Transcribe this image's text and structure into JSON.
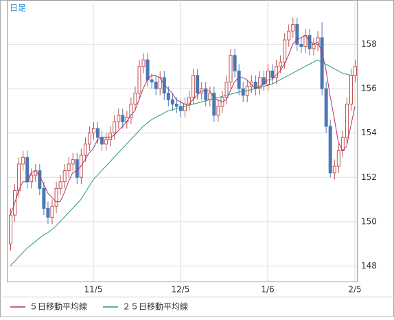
{
  "chart_data": {
    "type": "candlestick",
    "title": "日足",
    "categories": [
      null,
      null,
      null,
      null,
      null,
      null,
      null,
      null,
      null,
      null,
      null,
      null,
      null,
      null,
      null,
      null,
      null,
      null,
      null,
      null,
      "11/5",
      null,
      null,
      null,
      null,
      null,
      null,
      null,
      null,
      null,
      null,
      null,
      null,
      null,
      null,
      null,
      null,
      null,
      null,
      null,
      null,
      "12/5",
      null,
      null,
      null,
      null,
      null,
      null,
      null,
      null,
      null,
      null,
      null,
      null,
      null,
      null,
      null,
      null,
      null,
      null,
      null,
      null,
      "1/6",
      null,
      null,
      null,
      null,
      null,
      null,
      null,
      null,
      null,
      null,
      null,
      null,
      null,
      null,
      null,
      null,
      null,
      null,
      null,
      null,
      "2/5"
    ],
    "open": [
      149.0,
      150.3,
      151.4,
      152.6,
      152.9,
      151.8,
      152.1,
      152.3,
      151.5,
      150.6,
      150.2,
      150.7,
      151.5,
      151.8,
      152.3,
      152.6,
      152.8,
      152.0,
      153.0,
      153.5,
      154.0,
      154.2,
      153.8,
      153.5,
      153.7,
      154.0,
      154.5,
      154.8,
      154.5,
      154.7,
      155.3,
      155.8,
      157.0,
      157.3,
      156.4,
      156.3,
      156.0,
      156.5,
      155.8,
      155.5,
      155.3,
      155.2,
      155.0,
      155.3,
      155.6,
      156.6,
      155.8,
      156.0,
      155.5,
      155.8,
      154.8,
      155.2,
      155.6,
      156.3,
      157.5,
      156.8,
      156.0,
      155.7,
      156.1,
      156.3,
      156.0,
      156.5,
      156.2,
      156.8,
      156.5,
      157.0,
      157.2,
      158.2,
      158.6,
      158.9,
      158.0,
      157.9,
      158.4,
      157.8,
      158.0,
      158.3,
      156.0,
      154.3,
      152.2,
      152.5,
      153.2,
      153.8,
      155.3,
      156.6
    ],
    "high": [
      150.6,
      151.7,
      152.9,
      153.2,
      153.2,
      152.4,
      152.6,
      152.6,
      151.8,
      150.9,
      151.0,
      151.8,
      152.1,
      152.6,
      152.9,
      153.1,
      153.1,
      153.3,
      153.8,
      154.3,
      154.5,
      154.5,
      154.1,
      154.0,
      154.3,
      154.8,
      155.1,
      155.1,
      155.0,
      155.6,
      156.1,
      157.3,
      157.6,
      157.6,
      156.7,
      156.6,
      156.8,
      156.8,
      156.1,
      155.8,
      155.6,
      155.5,
      155.6,
      155.9,
      156.9,
      156.9,
      156.3,
      156.3,
      156.1,
      156.1,
      155.5,
      155.9,
      156.6,
      157.8,
      157.8,
      157.1,
      156.3,
      156.4,
      156.6,
      156.6,
      156.8,
      156.8,
      157.1,
      157.1,
      157.3,
      157.5,
      158.5,
      158.9,
      159.2,
      159.2,
      158.3,
      158.7,
      158.7,
      158.3,
      158.6,
      159.0,
      156.3,
      154.6,
      152.8,
      153.5,
      154.1,
      155.6,
      156.9,
      157.3
    ],
    "low": [
      148.7,
      150.0,
      151.1,
      152.3,
      151.5,
      151.5,
      151.8,
      151.2,
      150.3,
      149.9,
      149.9,
      150.4,
      151.2,
      151.5,
      152.0,
      152.3,
      151.7,
      151.7,
      152.7,
      153.2,
      153.7,
      153.5,
      153.2,
      153.2,
      153.4,
      153.7,
      154.2,
      154.2,
      154.2,
      154.4,
      155.0,
      155.5,
      156.7,
      156.1,
      156.0,
      155.7,
      155.7,
      155.5,
      155.2,
      155.0,
      154.9,
      154.7,
      154.7,
      155.0,
      155.3,
      155.5,
      155.5,
      155.2,
      155.2,
      154.5,
      154.5,
      154.9,
      155.3,
      156.0,
      156.5,
      155.7,
      155.4,
      155.4,
      155.8,
      155.7,
      155.7,
      155.9,
      155.9,
      156.2,
      156.2,
      156.7,
      156.9,
      157.9,
      158.3,
      157.7,
      157.6,
      157.6,
      157.5,
      157.5,
      157.7,
      155.7,
      154.0,
      152.0,
      151.9,
      152.2,
      152.9,
      153.5,
      155.0,
      156.3
    ],
    "close": [
      150.3,
      151.4,
      152.6,
      152.9,
      151.8,
      152.1,
      152.3,
      151.5,
      150.6,
      150.2,
      150.7,
      151.5,
      151.8,
      152.3,
      152.6,
      152.8,
      152.0,
      153.0,
      153.5,
      154.0,
      154.2,
      153.8,
      153.5,
      153.7,
      154.0,
      154.5,
      154.8,
      154.5,
      154.7,
      155.3,
      155.8,
      157.0,
      157.3,
      156.4,
      156.3,
      156.0,
      156.5,
      155.8,
      155.5,
      155.3,
      155.2,
      155.0,
      155.3,
      155.6,
      156.6,
      155.8,
      156.0,
      155.5,
      155.8,
      154.8,
      155.2,
      155.6,
      156.3,
      157.5,
      156.8,
      156.0,
      155.7,
      156.1,
      156.3,
      156.0,
      156.5,
      156.2,
      156.8,
      156.5,
      157.0,
      157.2,
      158.2,
      158.6,
      158.9,
      158.0,
      157.9,
      158.4,
      157.8,
      158.0,
      158.3,
      156.0,
      154.3,
      152.2,
      152.5,
      153.2,
      153.8,
      155.3,
      156.6,
      157.0
    ],
    "up_color": "#c0504d",
    "down_color": "#4a78b4",
    "series": [
      {
        "name": "５日移動平均線",
        "color": "#b0306a",
        "values": [
          150.3,
          150.8,
          151.4,
          151.8,
          151.8,
          152.2,
          152.3,
          152.1,
          151.7,
          151.3,
          151.1,
          150.9,
          150.9,
          151.3,
          151.8,
          152.2,
          152.3,
          152.5,
          152.8,
          153.1,
          153.3,
          153.7,
          153.8,
          153.8,
          153.8,
          153.9,
          154.1,
          154.3,
          154.5,
          154.8,
          155.0,
          155.5,
          156.0,
          156.4,
          156.6,
          156.6,
          156.5,
          156.2,
          156.0,
          155.8,
          155.5,
          155.4,
          155.3,
          155.3,
          155.5,
          155.7,
          155.9,
          155.9,
          155.9,
          155.6,
          155.5,
          155.4,
          155.5,
          155.9,
          156.3,
          156.5,
          156.5,
          156.4,
          156.2,
          156.0,
          156.1,
          156.2,
          156.4,
          156.4,
          156.6,
          156.8,
          157.1,
          157.5,
          158.0,
          158.2,
          158.3,
          158.4,
          158.2,
          158.0,
          158.1,
          157.7,
          156.9,
          155.7,
          154.7,
          153.6,
          153.2,
          153.4,
          154.3,
          155.2
        ]
      },
      {
        "name": "２５日移動平均線",
        "color": "#2a9a6a",
        "values": [
          148.0,
          148.2,
          148.4,
          148.6,
          148.8,
          148.95,
          149.1,
          149.25,
          149.4,
          149.5,
          149.65,
          149.8,
          150.0,
          150.2,
          150.4,
          150.6,
          150.8,
          151.0,
          151.3,
          151.6,
          151.9,
          152.1,
          152.3,
          152.5,
          152.7,
          152.9,
          153.1,
          153.3,
          153.5,
          153.7,
          153.9,
          154.1,
          154.3,
          154.45,
          154.6,
          154.7,
          154.8,
          154.9,
          155.0,
          155.05,
          155.1,
          155.15,
          155.2,
          155.25,
          155.3,
          155.35,
          155.4,
          155.45,
          155.5,
          155.55,
          155.6,
          155.65,
          155.7,
          155.75,
          155.8,
          155.85,
          155.9,
          155.9,
          155.95,
          156.0,
          156.05,
          156.1,
          156.15,
          156.2,
          156.3,
          156.4,
          156.5,
          156.6,
          156.7,
          156.8,
          156.9,
          157.0,
          157.1,
          157.2,
          157.3,
          157.2,
          157.1,
          157.0,
          156.9,
          156.8,
          156.7,
          156.65,
          156.6,
          156.6
        ]
      }
    ],
    "ylim": [
      147.3,
      160
    ],
    "yticks": [
      148,
      150,
      152,
      154,
      156,
      158
    ],
    "grid": true
  }
}
